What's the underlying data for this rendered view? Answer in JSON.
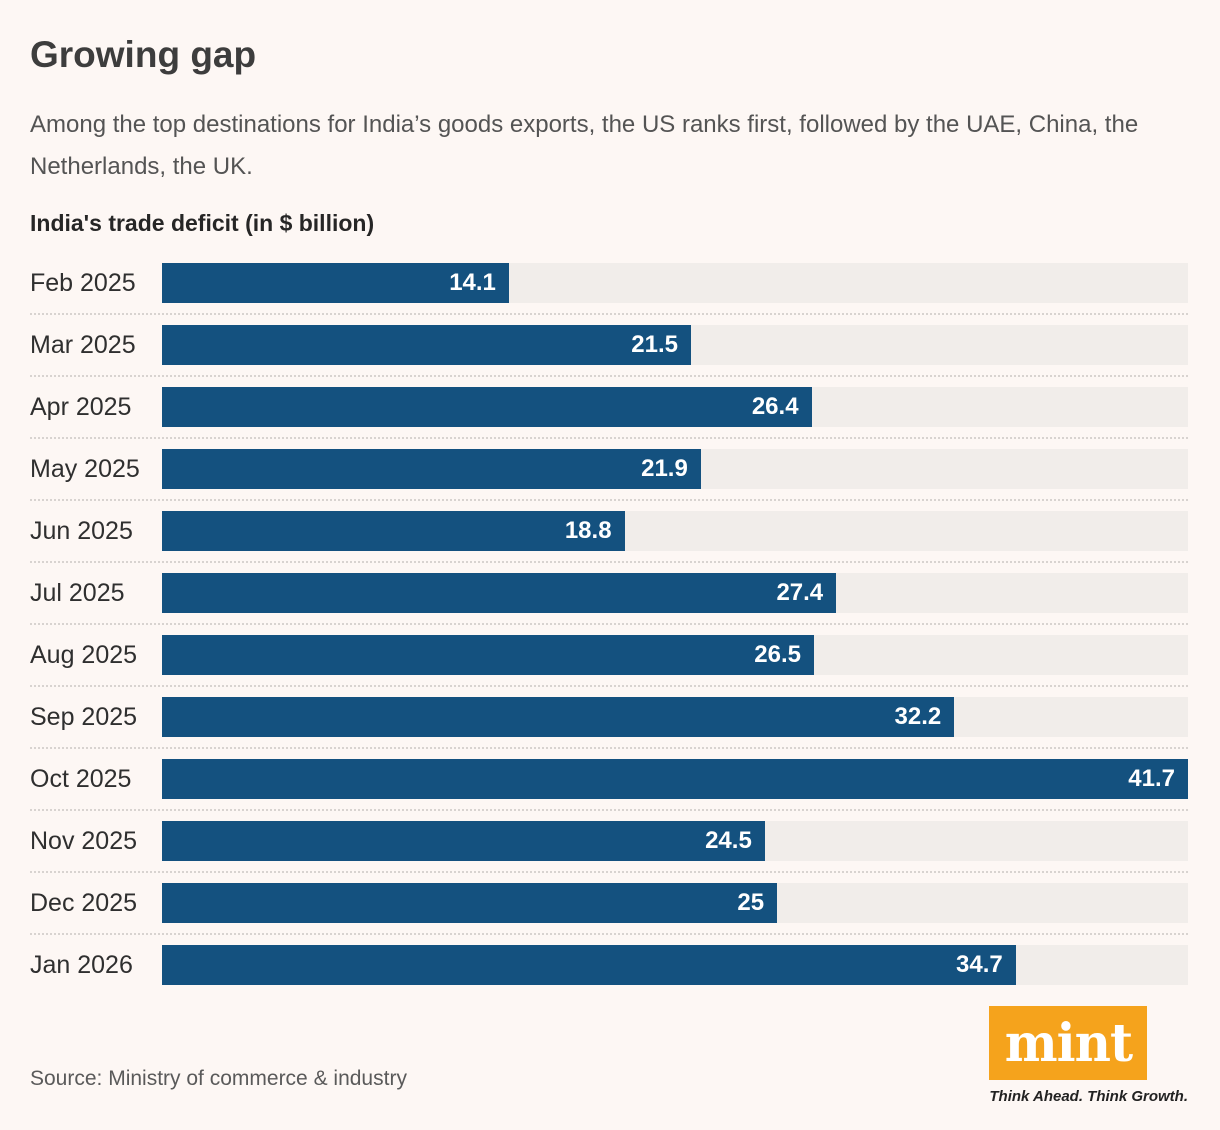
{
  "page": {
    "title": "Growing gap",
    "subtitle": "Among the top destinations for India’s goods exports, the US ranks first, followed by the UAE, China, the Netherlands, the UK.",
    "source": "Source: Ministry of commerce & industry"
  },
  "brand": {
    "logo_text": "mint",
    "tagline": "Think Ahead. Think Growth.",
    "logo_background": "#F5A31C",
    "logo_text_color": "#FFFFFF"
  },
  "colors": {
    "page_background": "#FDF7F4",
    "bar_fill": "#14517F",
    "bar_track": "#F1EDEA",
    "value_label": "#FFFFFF",
    "row_divider": "#D8D3D0",
    "title_text": "#3D3D3D",
    "subtitle_text": "#545454",
    "category_text": "#2F2F2F"
  },
  "chart_data": {
    "type": "bar",
    "orientation": "horizontal",
    "title": "India's trade deficit (in $ billion)",
    "categories": [
      "Feb 2025",
      "Mar 2025",
      "Apr 2025",
      "May 2025",
      "Jun 2025",
      "Jul 2025",
      "Aug 2025",
      "Sep 2025",
      "Oct 2025",
      "Nov 2025",
      "Dec 2025",
      "Jan 2026"
    ],
    "values": [
      14.1,
      21.5,
      26.4,
      21.9,
      18.8,
      27.4,
      26.5,
      32.2,
      41.7,
      24.5,
      25,
      34.7
    ],
    "value_labels": [
      "14.1",
      "21.5",
      "26.4",
      "21.9",
      "18.8",
      "27.4",
      "26.5",
      "32.2",
      "41.7",
      "24.5",
      "25",
      "34.7"
    ],
    "xlabel": "",
    "ylabel": "",
    "xlim": [
      0,
      41.7
    ],
    "grid": false,
    "legend": false,
    "value_label_position": "inside-end"
  }
}
